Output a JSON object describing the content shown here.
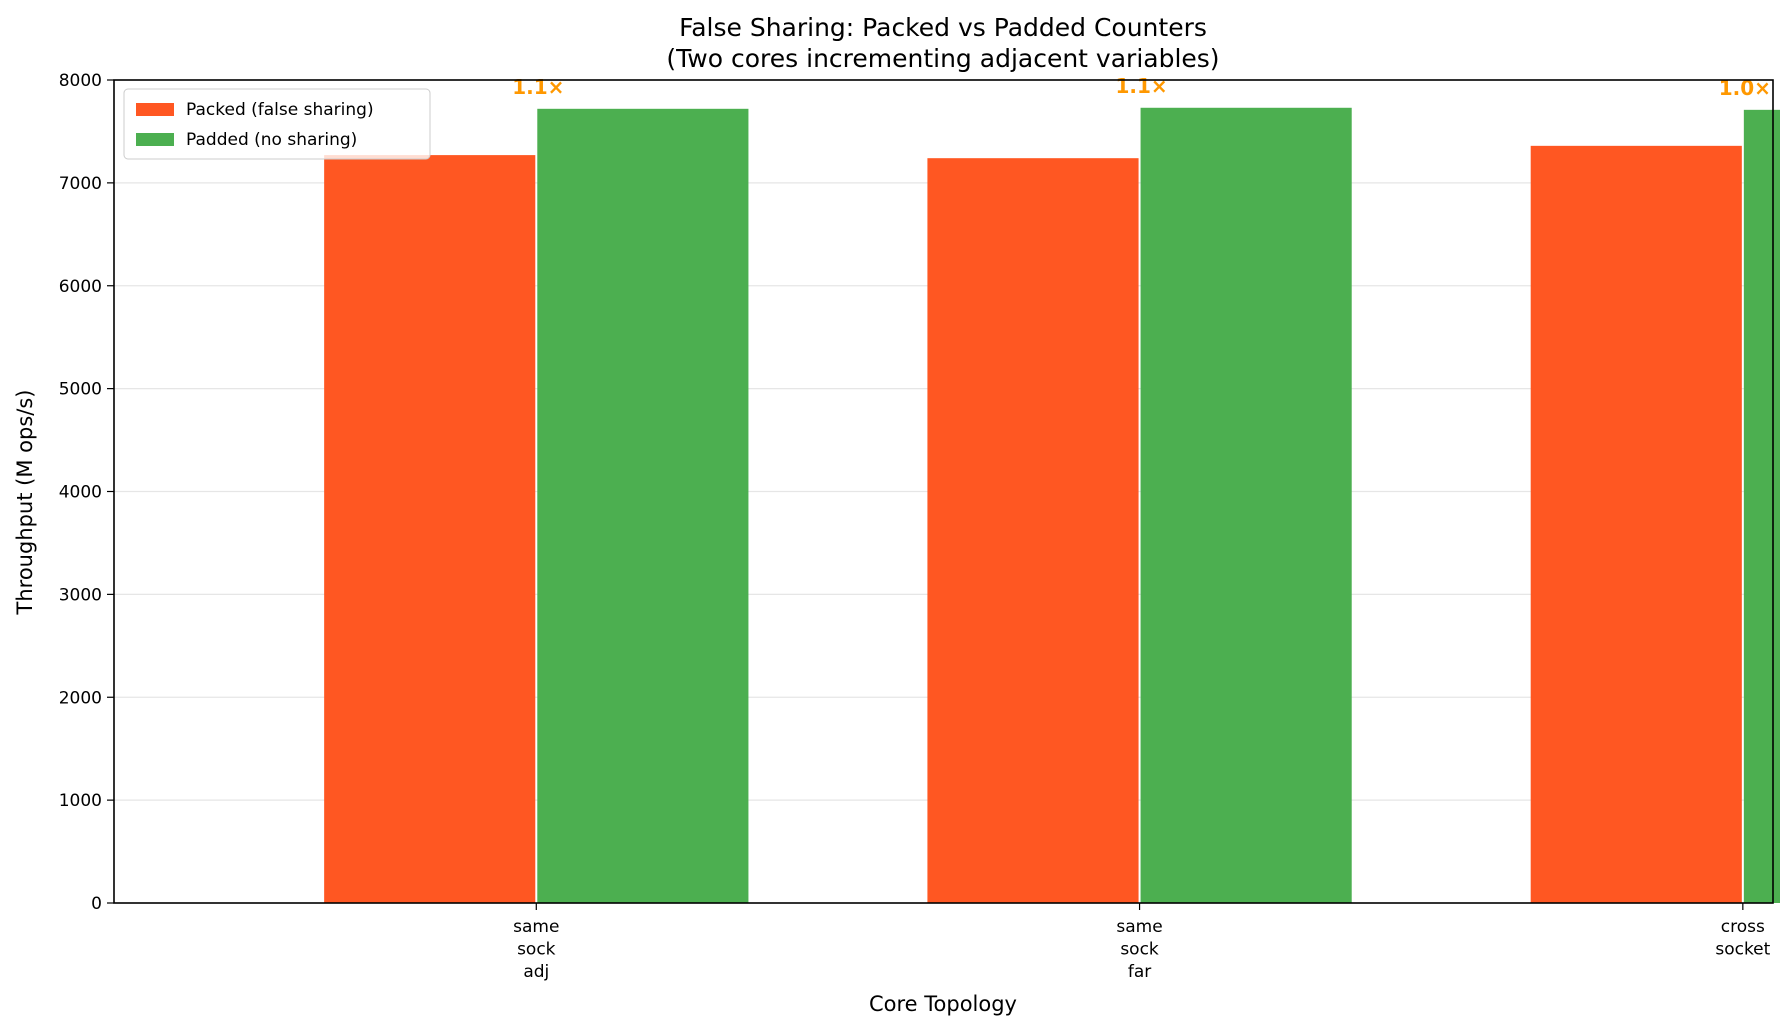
{
  "chart_data": {
    "type": "bar",
    "title_line1": "False Sharing: Packed vs Padded Counters",
    "title_line2": "(Two cores incrementing adjacent variables)",
    "xlabel": "Core Topology",
    "ylabel": "Throughput (M ops/s)",
    "ylim": [
      0,
      8000
    ],
    "yticks": [
      0,
      1000,
      2000,
      3000,
      4000,
      5000,
      6000,
      7000,
      8000
    ],
    "grid": "y",
    "legend_position": "top-left",
    "categories": [
      [
        "same",
        "sock",
        "adj"
      ],
      [
        "same",
        "sock",
        "far"
      ],
      [
        "cross",
        "socket"
      ]
    ],
    "series": [
      {
        "name": "Packed (false sharing)",
        "color": "#FF5722",
        "values": [
          7270,
          7240,
          7360
        ]
      },
      {
        "name": "Padded (no sharing)",
        "color": "#4CAF50",
        "values": [
          7720,
          7730,
          7710
        ]
      }
    ],
    "ratio_labels": [
      "1.1×",
      "1.1×",
      "1.0×"
    ],
    "ratio_color": "#FF9800"
  }
}
